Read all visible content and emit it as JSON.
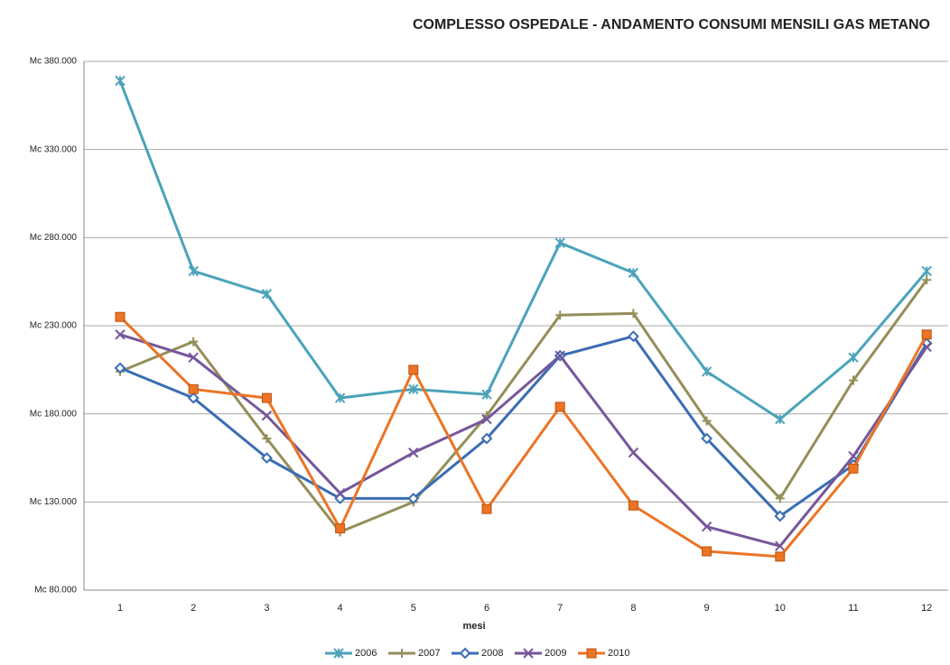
{
  "chart_data": {
    "type": "line",
    "title": "COMPLESSO OSPEDALE - ANDAMENTO CONSUMI MENSILI GAS METANO",
    "x_label": "mesi",
    "categories": [
      "1",
      "2",
      "3",
      "4",
      "5",
      "6",
      "7",
      "8",
      "9",
      "10",
      "11",
      "12"
    ],
    "ylim": [
      80000,
      380000
    ],
    "yticks": [
      {
        "value": 80000,
        "label": "Mc 80.000"
      },
      {
        "value": 130000,
        "label": "Mc 130.000"
      },
      {
        "value": 180000,
        "label": "Mc 180.000"
      },
      {
        "value": 230000,
        "label": "Mc 230.000"
      },
      {
        "value": 280000,
        "label": "Mc 280.000"
      },
      {
        "value": 330000,
        "label": "Mc 330.000"
      },
      {
        "value": 380000,
        "label": "Mc 380.000"
      }
    ],
    "grid": true,
    "legend": "bottom",
    "series": [
      {
        "name": "2006",
        "color": "#4aa3ba",
        "marker": "asterisk",
        "values": [
          369000,
          261000,
          248000,
          189000,
          194000,
          191000,
          277000,
          260000,
          204000,
          177000,
          212000,
          261000
        ]
      },
      {
        "name": "2007",
        "color": "#948e5a",
        "marker": "plus",
        "values": [
          204000,
          221000,
          166000,
          113000,
          130000,
          179000,
          236000,
          237000,
          176000,
          132000,
          199000,
          256000
        ]
      },
      {
        "name": "2008",
        "color": "#3a6db3",
        "marker": "diamond",
        "values": [
          206000,
          189000,
          155000,
          132000,
          132000,
          166000,
          213000,
          224000,
          166000,
          122000,
          151000,
          220000
        ]
      },
      {
        "name": "2009",
        "color": "#75579a",
        "marker": "cross",
        "values": [
          225000,
          212000,
          179000,
          135000,
          158000,
          177000,
          213000,
          158000,
          116000,
          105000,
          156000,
          218000
        ]
      },
      {
        "name": "2010",
        "color": "#ec7424",
        "marker": "square",
        "values": [
          235000,
          194000,
          189000,
          115000,
          205000,
          126000,
          184000,
          128000,
          102000,
          99000,
          149000,
          225000
        ]
      }
    ]
  }
}
